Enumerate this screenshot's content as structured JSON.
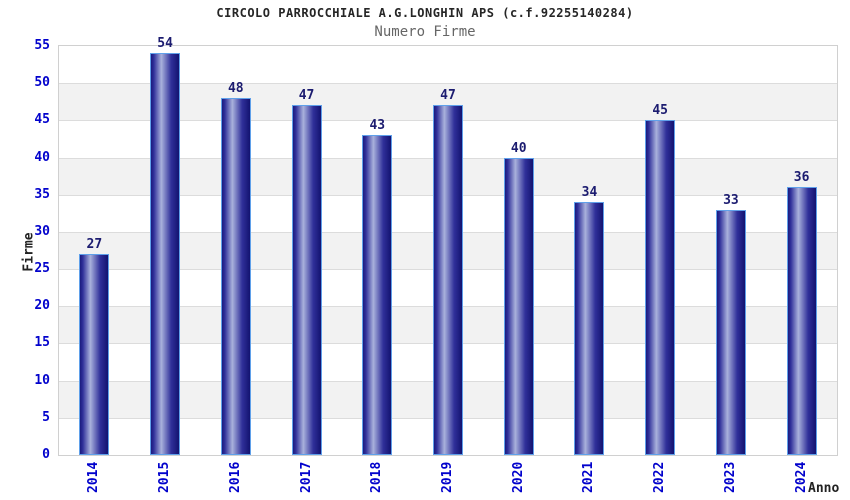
{
  "header": {
    "title": "CIRCOLO PARROCCHIALE A.G.LONGHIN APS (c.f.92255140284)",
    "subtitle": "Numero Firme"
  },
  "chart_data": {
    "type": "bar",
    "title": "CIRCOLO PARROCCHIALE A.G.LONGHIN APS (c.f.92255140284)",
    "subtitle": "Numero Firme",
    "categories": [
      "2014",
      "2015",
      "2016",
      "2017",
      "2018",
      "2019",
      "2020",
      "2021",
      "2022",
      "2023",
      "2024"
    ],
    "values": [
      27,
      54,
      48,
      47,
      43,
      47,
      40,
      34,
      45,
      33,
      36
    ],
    "xlabel": "Anno",
    "ylabel": "Firme",
    "ylim": [
      0,
      55
    ],
    "ytick_step": 5,
    "grid": "horizontal-bands",
    "legend": "none",
    "colors": {
      "bar_dark": "#1b1b7e",
      "bar_mid_dark": "#30309a",
      "bar_highlight": "#a9b1dc",
      "bar_right_dark": "#131370",
      "bar_border": "#5fa0ea",
      "tick_label": "#0202cc",
      "value_label": "#1c1c70",
      "band_gray": "#f2f2f2",
      "band_white": "#ffffff",
      "gridline": "#dcdcdc",
      "plot_border": "#d0d0d0",
      "title_color": "#262626",
      "subtitle_color": "#666666",
      "axis_title_color": "#222222"
    }
  }
}
